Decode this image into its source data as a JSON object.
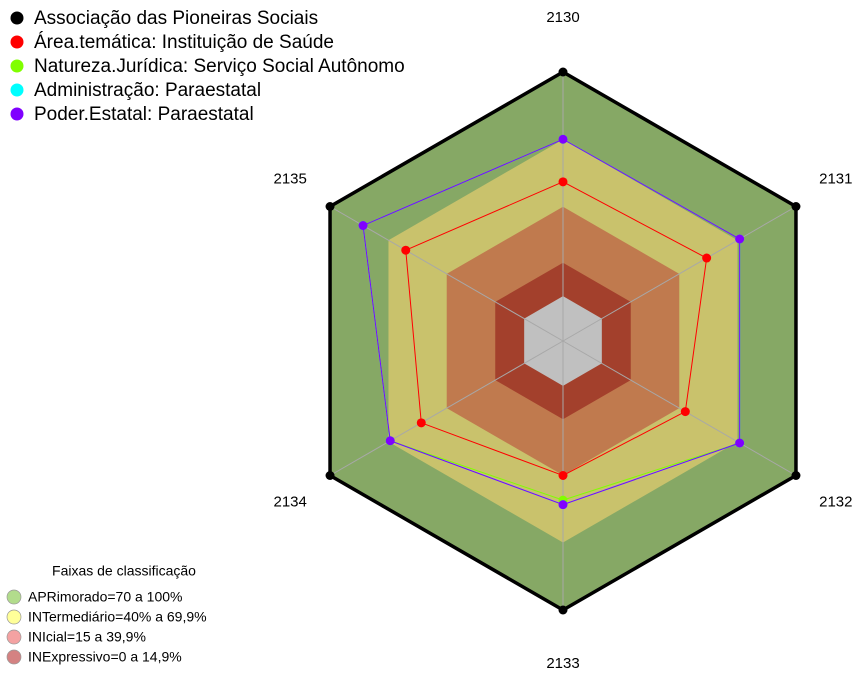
{
  "chart_data": {
    "type": "radar",
    "categories": [
      "2130",
      "2131",
      "2132",
      "2133",
      "2134",
      "2135"
    ],
    "ylim": [
      -20,
      100
    ],
    "series": [
      {
        "name": "Associação das Pioneiras Sociais",
        "color": "#000000",
        "values": [
          100,
          100,
          100,
          100,
          100,
          100
        ]
      },
      {
        "name": "Área.temática: Instituição de Saúde",
        "color": "#ff0000",
        "values": [
          51,
          54,
          43,
          40,
          53,
          61
        ]
      },
      {
        "name": "Natureza.Jurídica: Serviço Social Autônomo",
        "color": "#80ff00",
        "values": [
          70,
          71,
          71,
          51,
          69,
          83
        ]
      },
      {
        "name": "Administração: Paraestatal",
        "color": "#00ffff",
        "values": [
          70,
          71,
          71,
          53,
          69,
          83
        ]
      },
      {
        "name": "Poder.Estatal: Paraestatal",
        "color": "#8000ff",
        "values": [
          70,
          71,
          71,
          53,
          69,
          83
        ]
      }
    ],
    "bands_title": "Faixas de classificação",
    "bands": [
      {
        "label": "APRimorado=70 a 100%",
        "from": 70,
        "to": 100,
        "color": "#86a865",
        "swatch": "#b2dc8c"
      },
      {
        "label": "INTermediário=40% a 69,9%",
        "from": 40,
        "to": 69.9,
        "color": "#c9c26c",
        "swatch": "#ffff99"
      },
      {
        "label": "INIcial=15 a 39,9%",
        "from": 15,
        "to": 39.9,
        "color": "#c07a4e",
        "swatch": "#f4a2a2"
      },
      {
        "label": "INExpressivo=0 a 14,9%",
        "from": 0,
        "to": 14.9,
        "color": "#a3402c",
        "swatch": "#d48282"
      }
    ]
  }
}
